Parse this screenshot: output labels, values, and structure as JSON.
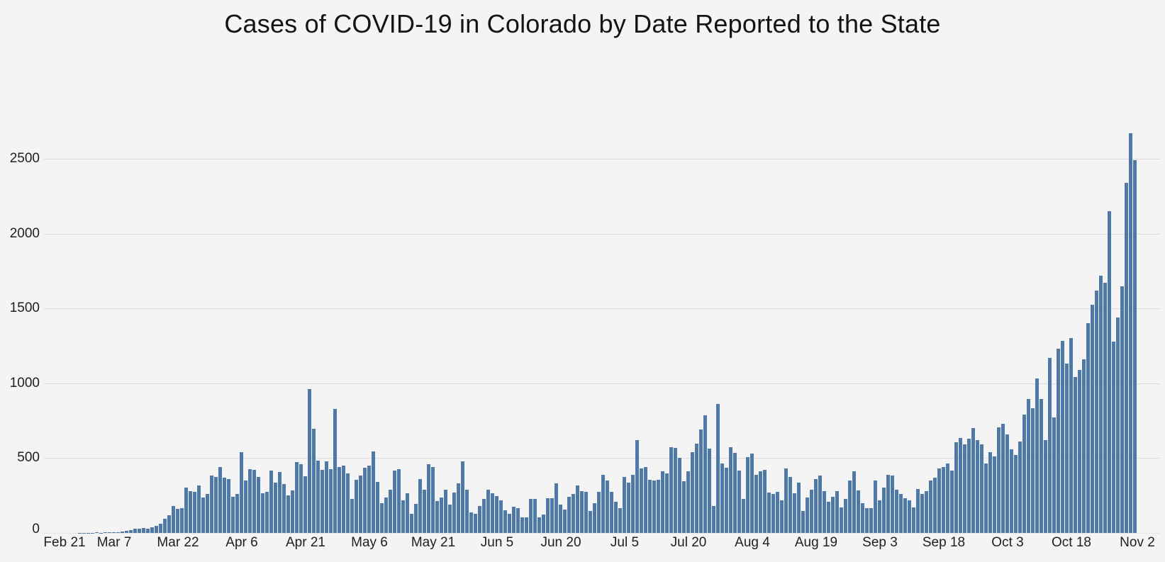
{
  "chart_data": {
    "type": "bar",
    "title": "Cases of COVID-19 in Colorado by Date Reported to the State",
    "xlabel": "",
    "ylabel": "",
    "x_start_date": "Feb 21",
    "x_end_date": "Nov 2",
    "x_interval": "1 day",
    "x_tick_labels": [
      "Feb 21",
      "Mar 7",
      "Mar 22",
      "Apr 6",
      "Apr 21",
      "May 6",
      "May 21",
      "Jun 5",
      "Jun 20",
      "Jul 5",
      "Jul 20",
      "Aug 4",
      "Aug 19",
      "Sep 3",
      "Sep 18",
      "Oct 3",
      "Oct 18",
      "Nov 2"
    ],
    "x_tick_day_indices": [
      0,
      15,
      30,
      45,
      60,
      75,
      90,
      105,
      120,
      135,
      150,
      165,
      180,
      195,
      210,
      225,
      240,
      255
    ],
    "y_ticks": [
      0,
      500,
      1000,
      1500,
      2000,
      2500
    ],
    "ylim": [
      0,
      2800
    ],
    "grid": "horizontal",
    "legend_position": "none",
    "bar_color": "#4e79a7",
    "values": [
      0,
      0,
      0,
      0,
      0,
      0,
      0,
      1,
      2,
      2,
      1,
      3,
      2,
      6,
      4,
      6,
      5,
      9,
      13,
      18,
      28,
      27,
      32,
      30,
      40,
      45,
      63,
      95,
      120,
      180,
      160,
      165,
      305,
      280,
      275,
      315,
      235,
      260,
      385,
      375,
      440,
      370,
      360,
      240,
      260,
      540,
      350,
      425,
      420,
      375,
      265,
      275,
      415,
      335,
      405,
      325,
      250,
      285,
      475,
      460,
      380,
      960,
      695,
      485,
      420,
      480,
      425,
      830,
      440,
      450,
      400,
      225,
      355,
      385,
      435,
      450,
      545,
      340,
      200,
      235,
      290,
      415,
      425,
      220,
      265,
      130,
      195,
      360,
      290,
      460,
      440,
      215,
      235,
      290,
      190,
      270,
      330,
      480,
      290,
      135,
      130,
      180,
      225,
      290,
      265,
      245,
      220,
      150,
      130,
      175,
      165,
      105,
      105,
      225,
      225,
      105,
      125,
      230,
      230,
      330,
      190,
      155,
      240,
      260,
      315,
      280,
      275,
      145,
      200,
      275,
      390,
      350,
      275,
      210,
      165,
      375,
      335,
      390,
      620,
      430,
      440,
      355,
      350,
      355,
      410,
      400,
      575,
      570,
      500,
      345,
      410,
      540,
      595,
      690,
      785,
      565,
      180,
      860,
      465,
      435,
      575,
      535,
      415,
      225,
      505,
      530,
      390,
      410,
      420,
      270,
      260,
      275,
      220,
      430,
      375,
      265,
      335,
      145,
      235,
      290,
      360,
      385,
      280,
      210,
      240,
      280,
      170,
      225,
      350,
      410,
      285,
      200,
      165,
      165,
      350,
      220,
      305,
      390,
      385,
      290,
      260,
      230,
      220,
      170,
      295,
      260,
      280,
      350,
      370,
      430,
      440,
      465,
      415,
      605,
      635,
      590,
      630,
      700,
      620,
      590,
      465,
      540,
      510,
      705,
      730,
      660,
      560,
      520,
      610,
      790,
      895,
      835,
      1030,
      895,
      620,
      1170,
      770,
      1230,
      1285,
      1130,
      1300,
      1040,
      1090,
      1160,
      1400,
      1525,
      1620,
      1720,
      1670,
      2150,
      1280,
      1440,
      1650,
      2340,
      2670,
      2490
    ]
  },
  "style": {
    "background": "#f4f4f5",
    "gridline_color": "#dcdcde",
    "text_color": "#1f1f1f"
  }
}
